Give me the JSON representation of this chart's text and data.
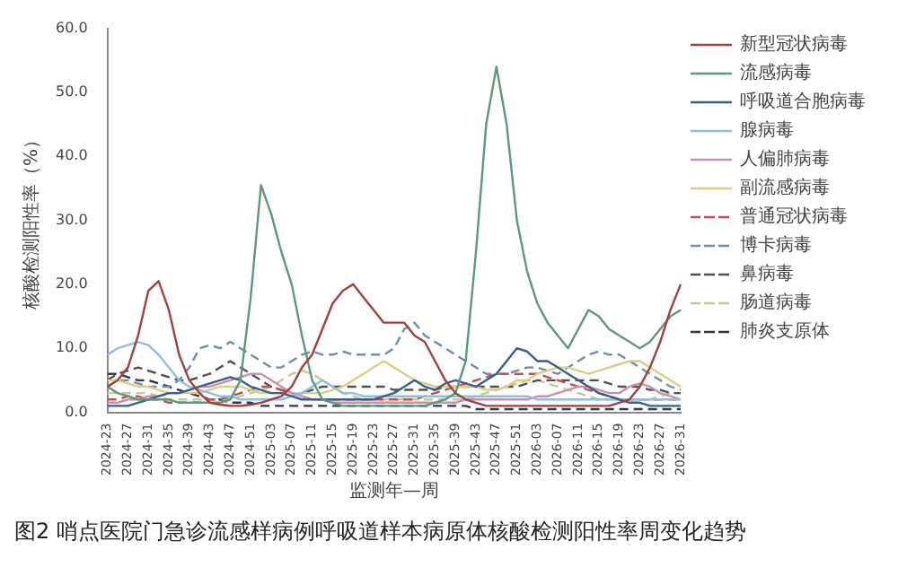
{
  "chart_data": {
    "type": "line",
    "xlabel": "监测年—周",
    "ylabel": "核酸检测阳性率（%）",
    "annotations": [
      "图2 哨点医院门急诊流感样病例呼吸道样本病原体核酸检测阳性率周变化趋势"
    ],
    "categories": [
      "2024-23",
      null,
      "2024-27",
      null,
      "2024-31",
      null,
      "2024-35",
      null,
      "2024-39",
      null,
      "2024-43",
      null,
      "2024-47",
      null,
      "2024-51",
      null,
      "2025-03",
      null,
      "2025-07",
      null,
      "2025-11",
      null,
      "2025-15",
      null,
      "2025-19",
      null,
      "2025-23",
      null,
      "2025-27",
      null,
      "2025-31",
      null,
      "2025-35",
      null,
      "2025-39",
      null,
      "2025-43",
      null,
      "2025-47",
      null,
      "2025-51",
      null,
      "2026-03",
      null,
      "2026-07",
      null,
      "2026-11",
      null,
      "2026-15",
      null,
      "2026-19",
      null,
      "2026-23",
      null,
      "2026-27",
      null,
      "2026-31"
    ],
    "ylim": [
      0,
      60
    ],
    "yticks": [
      {
        "value": 0,
        "label": "0.0"
      },
      {
        "value": 10,
        "label": "10.0"
      },
      {
        "value": 20,
        "label": "20.0"
      },
      {
        "value": 30,
        "label": "30.0"
      },
      {
        "value": 40,
        "label": "40.0"
      },
      {
        "value": 50,
        "label": "50.0"
      },
      {
        "value": 60,
        "label": "60.0"
      }
    ],
    "grid": false,
    "legend": "right",
    "marker": "none",
    "series": [
      {
        "name": "新型冠状病毒",
        "color": "#a0413f",
        "line_style": "solid",
        "values": [
          4,
          5,
          7,
          12,
          19,
          20.5,
          16,
          9,
          5,
          3,
          1.5,
          1.2,
          1,
          1,
          1.2,
          1.5,
          2,
          2.5,
          4,
          7,
          9,
          13,
          17,
          19,
          20,
          18,
          16,
          14,
          14,
          14,
          12,
          11,
          8,
          5,
          3,
          2,
          1.5,
          1,
          1,
          1,
          1,
          1,
          1,
          1,
          1,
          1,
          1,
          1,
          1,
          1,
          1.5,
          2,
          4,
          7,
          11,
          16,
          20
        ]
      },
      {
        "name": "流感病毒",
        "color": "#5a9a7a",
        "line_style": "solid",
        "values": [
          4,
          3,
          2.5,
          2,
          2,
          2,
          2,
          1.5,
          1.5,
          1.5,
          1.5,
          1.5,
          2,
          5,
          18,
          35.5,
          31,
          25,
          20,
          12,
          5,
          2,
          1.5,
          1,
          1,
          1,
          1,
          1,
          1,
          1,
          1,
          1,
          1.5,
          2,
          3,
          8,
          25,
          45,
          54,
          45,
          30,
          22,
          17,
          14,
          12,
          10,
          13,
          16,
          15,
          13,
          12,
          11,
          10,
          11,
          13,
          15,
          16
        ]
      },
      {
        "name": "呼吸道合胞病毒",
        "color": "#3a5f8a",
        "line_style": "solid",
        "values": [
          1,
          1,
          1,
          1.5,
          2,
          2.5,
          3,
          3,
          3.5,
          4,
          4.5,
          5,
          5.5,
          5,
          4,
          3.5,
          3,
          3,
          2.5,
          2,
          2,
          2,
          2,
          2,
          2,
          2,
          2,
          2.5,
          3,
          4,
          5,
          4,
          3.5,
          4.5,
          5,
          4.5,
          4,
          5,
          6,
          8,
          10,
          9.5,
          8,
          8,
          7,
          6,
          5,
          4,
          3,
          2.5,
          2,
          1.5,
          1.5,
          1,
          1,
          1,
          1
        ]
      },
      {
        "name": "腺病毒",
        "color": "#8fbfdc",
        "line_style": "solid",
        "values": [
          9,
          10,
          10.5,
          11,
          10.5,
          9,
          7,
          5,
          4,
          3.5,
          3,
          2.5,
          2.5,
          2,
          2,
          2,
          2,
          2,
          2.5,
          3,
          4,
          5,
          4,
          3,
          3,
          2.5,
          2.5,
          2.5,
          2.5,
          2.5,
          2.5,
          2.5,
          2.5,
          2.5,
          2.5,
          2.5,
          2.5,
          2.5,
          2.5,
          2.5,
          2.5,
          2.5,
          2,
          2,
          2,
          2,
          2,
          2,
          2,
          2,
          2,
          2,
          2,
          2,
          2,
          2,
          2
        ]
      },
      {
        "name": "人偏肺病毒",
        "color": "#c890b0",
        "line_style": "solid",
        "values": [
          1.5,
          1.5,
          2,
          2,
          2.5,
          2.5,
          3,
          3,
          3.5,
          4,
          4,
          4.5,
          5,
          5.5,
          6,
          6,
          5,
          4,
          3,
          2.5,
          2,
          2,
          1.5,
          1.5,
          1.5,
          1.5,
          1.5,
          1.5,
          1.5,
          1.5,
          1.5,
          1.5,
          1.5,
          1.5,
          1.5,
          2,
          2,
          2,
          2,
          2,
          2,
          2,
          2.5,
          2.5,
          3,
          3.5,
          4,
          4,
          3.5,
          3,
          3,
          4,
          4.5,
          4,
          3,
          2.5,
          2
        ]
      },
      {
        "name": "副流感病毒",
        "color": "#d8d080",
        "line_style": "solid",
        "values": [
          5,
          5,
          4.5,
          4,
          4,
          3.5,
          3,
          3,
          3,
          3,
          3.5,
          4,
          4,
          4,
          3.5,
          3,
          3,
          3,
          3,
          3,
          3,
          3,
          3.5,
          4,
          5,
          6,
          7,
          8,
          7,
          6,
          5,
          4.5,
          4,
          4,
          4,
          4,
          4,
          3.5,
          3.5,
          4,
          5,
          5,
          6,
          6.5,
          7,
          7,
          6.5,
          6,
          6.5,
          7,
          7.5,
          8,
          8,
          7,
          6,
          5,
          4
        ]
      },
      {
        "name": "普通冠状病毒",
        "color": "#c05050",
        "line_style": "dashed",
        "values": [
          2,
          2,
          2.5,
          2.5,
          2,
          2,
          1.5,
          1.5,
          1.5,
          1.5,
          2,
          2,
          2.5,
          3,
          3.5,
          4,
          4,
          3.5,
          3,
          2.5,
          2,
          2,
          2,
          2,
          2,
          2,
          2,
          2,
          2,
          2,
          2,
          2.5,
          3,
          3.5,
          4,
          4.5,
          5,
          5.5,
          6,
          6,
          6,
          6,
          6,
          5.5,
          5,
          4.5,
          4,
          3.5,
          3,
          2.5,
          2,
          2,
          2,
          2,
          2,
          2,
          2
        ]
      },
      {
        "name": "博卡病毒",
        "color": "#6f8fa8",
        "line_style": "dashed",
        "values": [
          4,
          5,
          5,
          4.5,
          4,
          4,
          4,
          5,
          7,
          10,
          10.5,
          10,
          11,
          10,
          9,
          8,
          7,
          7,
          8,
          9,
          9.5,
          9,
          9,
          9.5,
          9,
          9,
          9,
          9,
          10,
          13,
          14,
          12,
          11,
          10,
          9,
          8,
          7,
          6,
          6,
          6,
          6.5,
          7,
          7,
          6.5,
          6,
          7,
          8,
          9,
          9.5,
          9,
          9,
          8,
          7,
          6,
          5,
          4,
          3.5
        ]
      },
      {
        "name": "鼻病毒",
        "color": "#505050",
        "line_style": "dashed",
        "values": [
          5,
          6,
          6.5,
          7,
          6.5,
          6,
          5.5,
          5,
          5,
          5.5,
          6,
          7,
          8,
          7,
          6,
          5,
          4,
          3.5,
          3,
          3,
          3.5,
          4,
          4,
          4,
          4,
          4,
          4,
          4,
          3.5,
          3.5,
          3.5,
          3.5,
          3.5,
          4,
          4,
          4,
          4,
          4,
          4,
          4,
          4,
          4.5,
          5,
          5,
          5,
          5,
          5,
          5,
          5,
          4.5,
          4,
          4,
          4,
          3.5,
          3.5,
          3,
          3
        ]
      },
      {
        "name": "肠道病毒",
        "color": "#c8c890",
        "line_style": "dashed",
        "values": [
          3,
          3,
          3,
          3,
          3,
          2.5,
          2,
          2,
          2,
          2,
          2,
          2,
          2,
          2.5,
          3,
          3.5,
          4,
          5,
          6,
          6.5,
          6,
          5,
          4,
          3,
          2.5,
          2,
          2,
          2,
          2,
          2,
          2,
          2,
          2,
          2,
          2,
          2,
          2.5,
          3,
          3.5,
          4,
          4.5,
          5,
          5,
          4.5,
          4,
          3.5,
          3,
          2.5,
          2,
          2,
          2,
          2,
          2,
          2,
          2.5,
          3,
          3
        ]
      },
      {
        "name": "肺炎支原体",
        "color": "#303850",
        "line_style": "dashed",
        "values": [
          6,
          6,
          5.5,
          5,
          5,
          4.5,
          4,
          3.5,
          3,
          2.5,
          2,
          2,
          1.5,
          1.5,
          1.5,
          1,
          1,
          1,
          1,
          1,
          1,
          1,
          1,
          1,
          1,
          1,
          1,
          1,
          1,
          1,
          1,
          1,
          1,
          1,
          1,
          1,
          0.5,
          0.5,
          0.5,
          0.5,
          0.5,
          0.5,
          0.5,
          0.5,
          0.5,
          0.5,
          0.5,
          0.5,
          0.5,
          0.5,
          0.5,
          0.5,
          0.5,
          0.5,
          0.5,
          0.5,
          0.5
        ]
      }
    ]
  }
}
